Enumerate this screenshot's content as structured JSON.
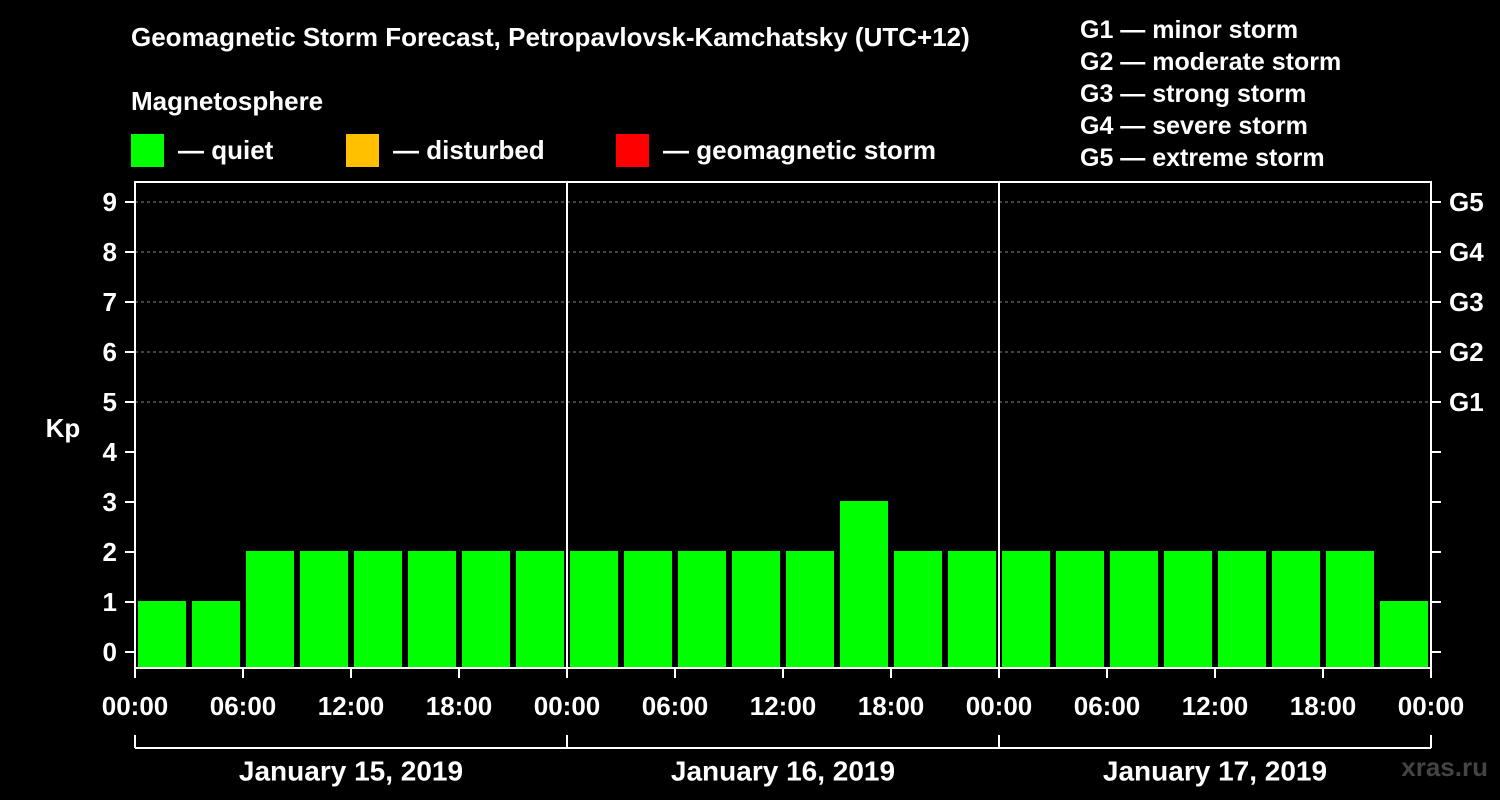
{
  "header": {
    "title": "Geomagnetic Storm Forecast, Petropavlovsk-Kamchatsky (UTC+12)",
    "magnetosphere_label": "Magnetosphere",
    "legend": [
      {
        "label": "— quiet",
        "color": "#00ff00"
      },
      {
        "label": "— disturbed",
        "color": "#ffc000"
      },
      {
        "label": "— geomagnetic storm",
        "color": "#ff0000"
      }
    ]
  },
  "storm_levels": [
    "G1 — minor storm",
    "G2 — moderate storm",
    "G3 — strong storm",
    "G4 — severe storm",
    "G5 — extreme storm"
  ],
  "watermark": "xras.ru",
  "chart_data": {
    "type": "bar",
    "ylabel": "Kp",
    "ylim": [
      0,
      9
    ],
    "yticks": [
      "0",
      "1",
      "2",
      "3",
      "4",
      "5",
      "6",
      "7",
      "8",
      "9"
    ],
    "right_ticks": [
      {
        "kp": 5,
        "label": "G1"
      },
      {
        "kp": 6,
        "label": "G2"
      },
      {
        "kp": 7,
        "label": "G3"
      },
      {
        "kp": 8,
        "label": "G4"
      },
      {
        "kp": 9,
        "label": "G5"
      }
    ],
    "grid": "horizontal dashed at Kp 5-9",
    "bar_color": "#00ff00",
    "x_tick_labels": [
      "00:00",
      "06:00",
      "12:00",
      "18:00",
      "00:00",
      "06:00",
      "12:00",
      "18:00",
      "00:00",
      "06:00",
      "12:00",
      "18:00",
      "00:00"
    ],
    "days": [
      "January 15, 2019",
      "January 16, 2019",
      "January 17, 2019"
    ],
    "values": [
      1,
      1,
      2,
      2,
      2,
      2,
      2,
      2,
      2,
      2,
      2,
      2,
      2,
      3,
      2,
      2,
      2,
      2,
      2,
      2,
      2,
      2,
      2,
      1
    ]
  }
}
